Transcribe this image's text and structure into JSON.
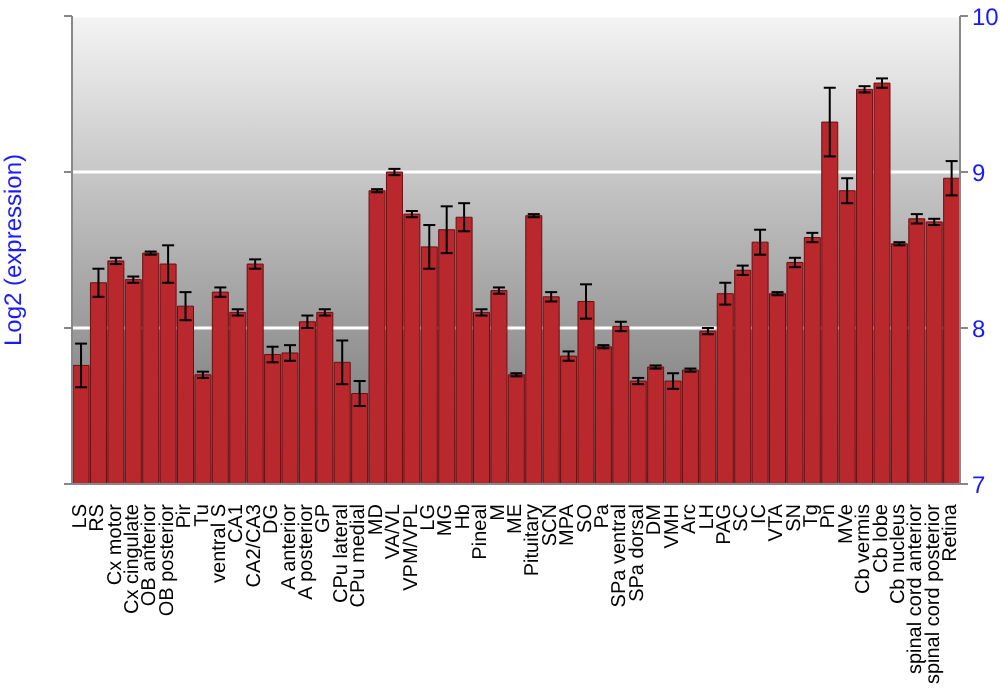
{
  "chart_data": {
    "type": "bar",
    "ylabel": "Log2 (expression)",
    "categories": [
      "LS",
      "RS",
      "Cx motor",
      "Cx cingulate",
      "OB anterior",
      "OB posterior",
      "Pir",
      "Tu",
      "ventral S",
      "CA1",
      "CA2/CA3",
      "DG",
      "A anterior",
      "A posterior",
      "GP",
      "CPu lateral",
      "CPu medial",
      "MD",
      "VA/VL",
      "VPM/VPL",
      "LG",
      "MG",
      "Hb",
      "Pineal",
      "M",
      "ME",
      "Pituitary",
      "SCN",
      "MPA",
      "SO",
      "Pa",
      "SPa ventral",
      "SPa dorsal",
      "DM",
      "VMH",
      "Arc",
      "LH",
      "PAG",
      "SC",
      "IC",
      "VTA",
      "SN",
      "Tg",
      "Pn",
      "MVe",
      "Cb vermis",
      "Cb lobe",
      "Cb nucleus",
      "spinal cord anterior",
      "spinal cord posterior",
      "Retina"
    ],
    "values": [
      7.76,
      8.29,
      8.43,
      8.31,
      8.48,
      8.41,
      8.14,
      7.7,
      8.23,
      8.1,
      8.41,
      7.83,
      7.84,
      8.04,
      8.1,
      7.78,
      7.58,
      8.88,
      9.0,
      8.73,
      8.52,
      8.63,
      8.71,
      8.1,
      8.24,
      7.7,
      8.72,
      8.2,
      7.82,
      8.17,
      7.88,
      8.01,
      7.66,
      7.75,
      7.66,
      7.73,
      7.98,
      8.22,
      8.37,
      8.55,
      8.22,
      8.42,
      8.58,
      9.32,
      8.88,
      9.53,
      9.57,
      8.54,
      8.7,
      8.68,
      8.96
    ],
    "errors": [
      0.14,
      0.09,
      0.02,
      0.02,
      0.01,
      0.12,
      0.09,
      0.02,
      0.03,
      0.02,
      0.03,
      0.05,
      0.05,
      0.04,
      0.02,
      0.14,
      0.08,
      0.01,
      0.02,
      0.02,
      0.14,
      0.15,
      0.09,
      0.02,
      0.02,
      0.01,
      0.01,
      0.03,
      0.03,
      0.11,
      0.01,
      0.03,
      0.02,
      0.01,
      0.05,
      0.01,
      0.02,
      0.07,
      0.03,
      0.08,
      0.01,
      0.03,
      0.03,
      0.22,
      0.08,
      0.02,
      0.03,
      0.01,
      0.03,
      0.02,
      0.11
    ],
    "color": "#b8282c",
    "ylim": [
      7,
      10
    ],
    "yticks": [
      7,
      8,
      9,
      10
    ],
    "grid": "y"
  }
}
